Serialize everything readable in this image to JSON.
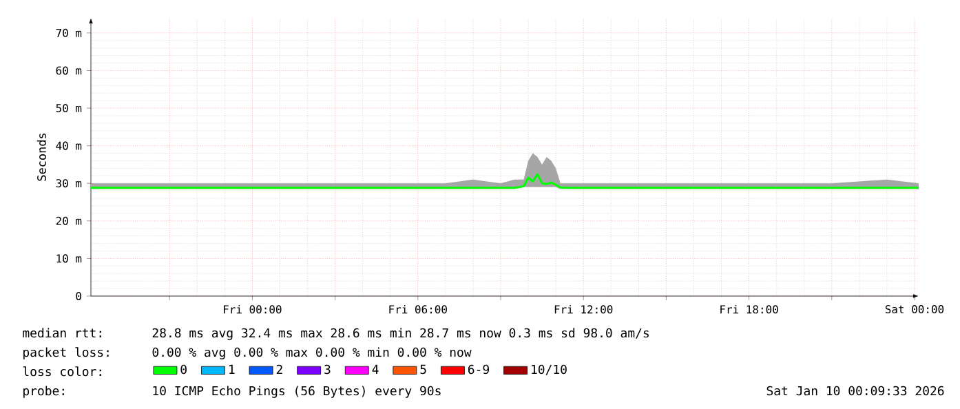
{
  "chart_data": {
    "type": "line",
    "ylabel": "Seconds",
    "x": [
      "2026-01-08T18:09",
      "2026-01-08T21:00",
      "2026-01-08T23:00",
      "2026-01-09T01:00",
      "2026-01-09T03:00",
      "2026-01-09T05:00",
      "2026-01-09T07:00",
      "2026-01-09T08:00",
      "2026-01-09T09:00",
      "2026-01-09T09:30",
      "2026-01-09T09:50",
      "2026-01-09T10:00",
      "2026-01-09T10:10",
      "2026-01-09T10:20",
      "2026-01-09T10:30",
      "2026-01-09T10:40",
      "2026-01-09T10:50",
      "2026-01-09T11:00",
      "2026-01-09T11:10",
      "2026-01-09T11:30",
      "2026-01-09T12:00",
      "2026-01-09T13:00",
      "2026-01-09T15:00",
      "2026-01-09T17:00",
      "2026-01-09T19:00",
      "2026-01-09T21:00",
      "2026-01-09T23:00",
      "2026-01-10T00:09"
    ],
    "series": [
      {
        "name": "0",
        "color": "#00ff00",
        "values": [
          28.8,
          28.8,
          28.8,
          28.8,
          28.8,
          28.8,
          28.8,
          28.8,
          28.8,
          28.8,
          29.2,
          31.5,
          30.5,
          32.4,
          30,
          29.8,
          30.2,
          29.6,
          28.9,
          28.8,
          28.8,
          28.8,
          28.8,
          28.8,
          28.8,
          28.8,
          28.8,
          28.8
        ],
        "lower": [
          28.5,
          28.5,
          28.5,
          28.5,
          28.5,
          28.5,
          28.5,
          28.5,
          28.5,
          28.5,
          29,
          29,
          29,
          29,
          29,
          29,
          29,
          29,
          28.5,
          28.5,
          28.5,
          28.5,
          28.5,
          28.5,
          28.5,
          28.5,
          28.5,
          28.5
        ],
        "upper": [
          30,
          30,
          30,
          30,
          30,
          30,
          30,
          31,
          30,
          31,
          31,
          36,
          38,
          37,
          35,
          37,
          36,
          34,
          30,
          30,
          30,
          30,
          30,
          30,
          30,
          30,
          31,
          30
        ]
      },
      {
        "name": "1",
        "color": "#00b8ff",
        "values": [
          null,
          null,
          null,
          null,
          null,
          null,
          null,
          null,
          null,
          null,
          null,
          null,
          null,
          null,
          null,
          null,
          null,
          null,
          null,
          null,
          null,
          null,
          null,
          null,
          null,
          null,
          null,
          null
        ]
      },
      {
        "name": "2",
        "color": "#0059ff",
        "values": [
          null,
          null,
          null,
          null,
          null,
          null,
          null,
          null,
          null,
          null,
          null,
          null,
          null,
          null,
          null,
          null,
          null,
          null,
          null,
          null,
          null,
          null,
          null,
          null,
          null,
          null,
          null,
          null
        ]
      },
      {
        "name": "3",
        "color": "#7e00ff",
        "values": [
          null,
          null,
          null,
          null,
          null,
          null,
          null,
          null,
          null,
          null,
          null,
          null,
          null,
          null,
          null,
          null,
          null,
          null,
          null,
          null,
          null,
          null,
          null,
          null,
          null,
          null,
          null,
          null
        ]
      },
      {
        "name": "4",
        "color": "#ff00ff",
        "values": [
          null,
          null,
          null,
          null,
          null,
          null,
          null,
          null,
          null,
          null,
          null,
          null,
          null,
          null,
          null,
          null,
          null,
          null,
          null,
          null,
          null,
          null,
          null,
          null,
          null,
          null,
          null,
          null
        ]
      },
      {
        "name": "5",
        "color": "#ff5500",
        "values": [
          null,
          null,
          null,
          null,
          null,
          null,
          null,
          null,
          null,
          null,
          null,
          null,
          null,
          null,
          null,
          null,
          null,
          null,
          null,
          null,
          null,
          null,
          null,
          null,
          null,
          null,
          null,
          null
        ]
      },
      {
        "name": "6-9",
        "color": "#ff0000",
        "values": [
          null,
          null,
          null,
          null,
          null,
          null,
          null,
          null,
          null,
          null,
          null,
          null,
          null,
          null,
          null,
          null,
          null,
          null,
          null,
          null,
          null,
          null,
          null,
          null,
          null,
          null,
          null,
          null
        ]
      },
      {
        "name": "10/10",
        "color": "#a10000",
        "values": [
          null,
          null,
          null,
          null,
          null,
          null,
          null,
          null,
          null,
          null,
          null,
          null,
          null,
          null,
          null,
          null,
          null,
          null,
          null,
          null,
          null,
          null,
          null,
          null,
          null,
          null,
          null,
          null
        ]
      }
    ],
    "xlim": [
      "2026-01-08T18:09",
      "2026-01-10T00:09"
    ],
    "xticks": [
      {
        "value": "2026-01-08T21:00",
        "label": null
      },
      {
        "value": "2026-01-09T00:00",
        "label": "Fri 00:00"
      },
      {
        "value": "2026-01-09T03:00",
        "label": null
      },
      {
        "value": "2026-01-09T06:00",
        "label": "Fri 06:00"
      },
      {
        "value": "2026-01-09T09:00",
        "label": null
      },
      {
        "value": "2026-01-09T12:00",
        "label": "Fri 12:00"
      },
      {
        "value": "2026-01-09T15:00",
        "label": null
      },
      {
        "value": "2026-01-09T18:00",
        "label": "Fri 18:00"
      },
      {
        "value": "2026-01-09T21:00",
        "label": null
      },
      {
        "value": "2026-01-10T00:00",
        "label": "Sat 00:00"
      }
    ],
    "ylim": [
      0,
      74
    ],
    "yticks": [
      0,
      {
        "value": 10,
        "label": "10 m"
      },
      {
        "value": 20,
        "label": "20 m"
      },
      {
        "value": 30,
        "label": "30 m"
      },
      {
        "value": 40,
        "label": "40 m"
      },
      {
        "value": 50,
        "label": "50 m"
      },
      {
        "value": 60,
        "label": "60 m"
      },
      {
        "value": 70,
        "label": "70 m"
      }
    ],
    "grid": true,
    "legend": "bottom",
    "legend_title": "loss color:",
    "annotations": [
      "median rtt:",
      "28.8 ms avg 32.4 ms max 28.6 ms min 28.7 ms now 0.3 ms sd 98.0 am/s",
      "packet loss:",
      "0.00 % avg 0.00 % max 0.00 % min 0.00 % now",
      "probe:",
      "10 ICMP Echo Pings (56 Bytes) every 90s",
      "Sat Jan 10 00:09:33 2026"
    ]
  }
}
